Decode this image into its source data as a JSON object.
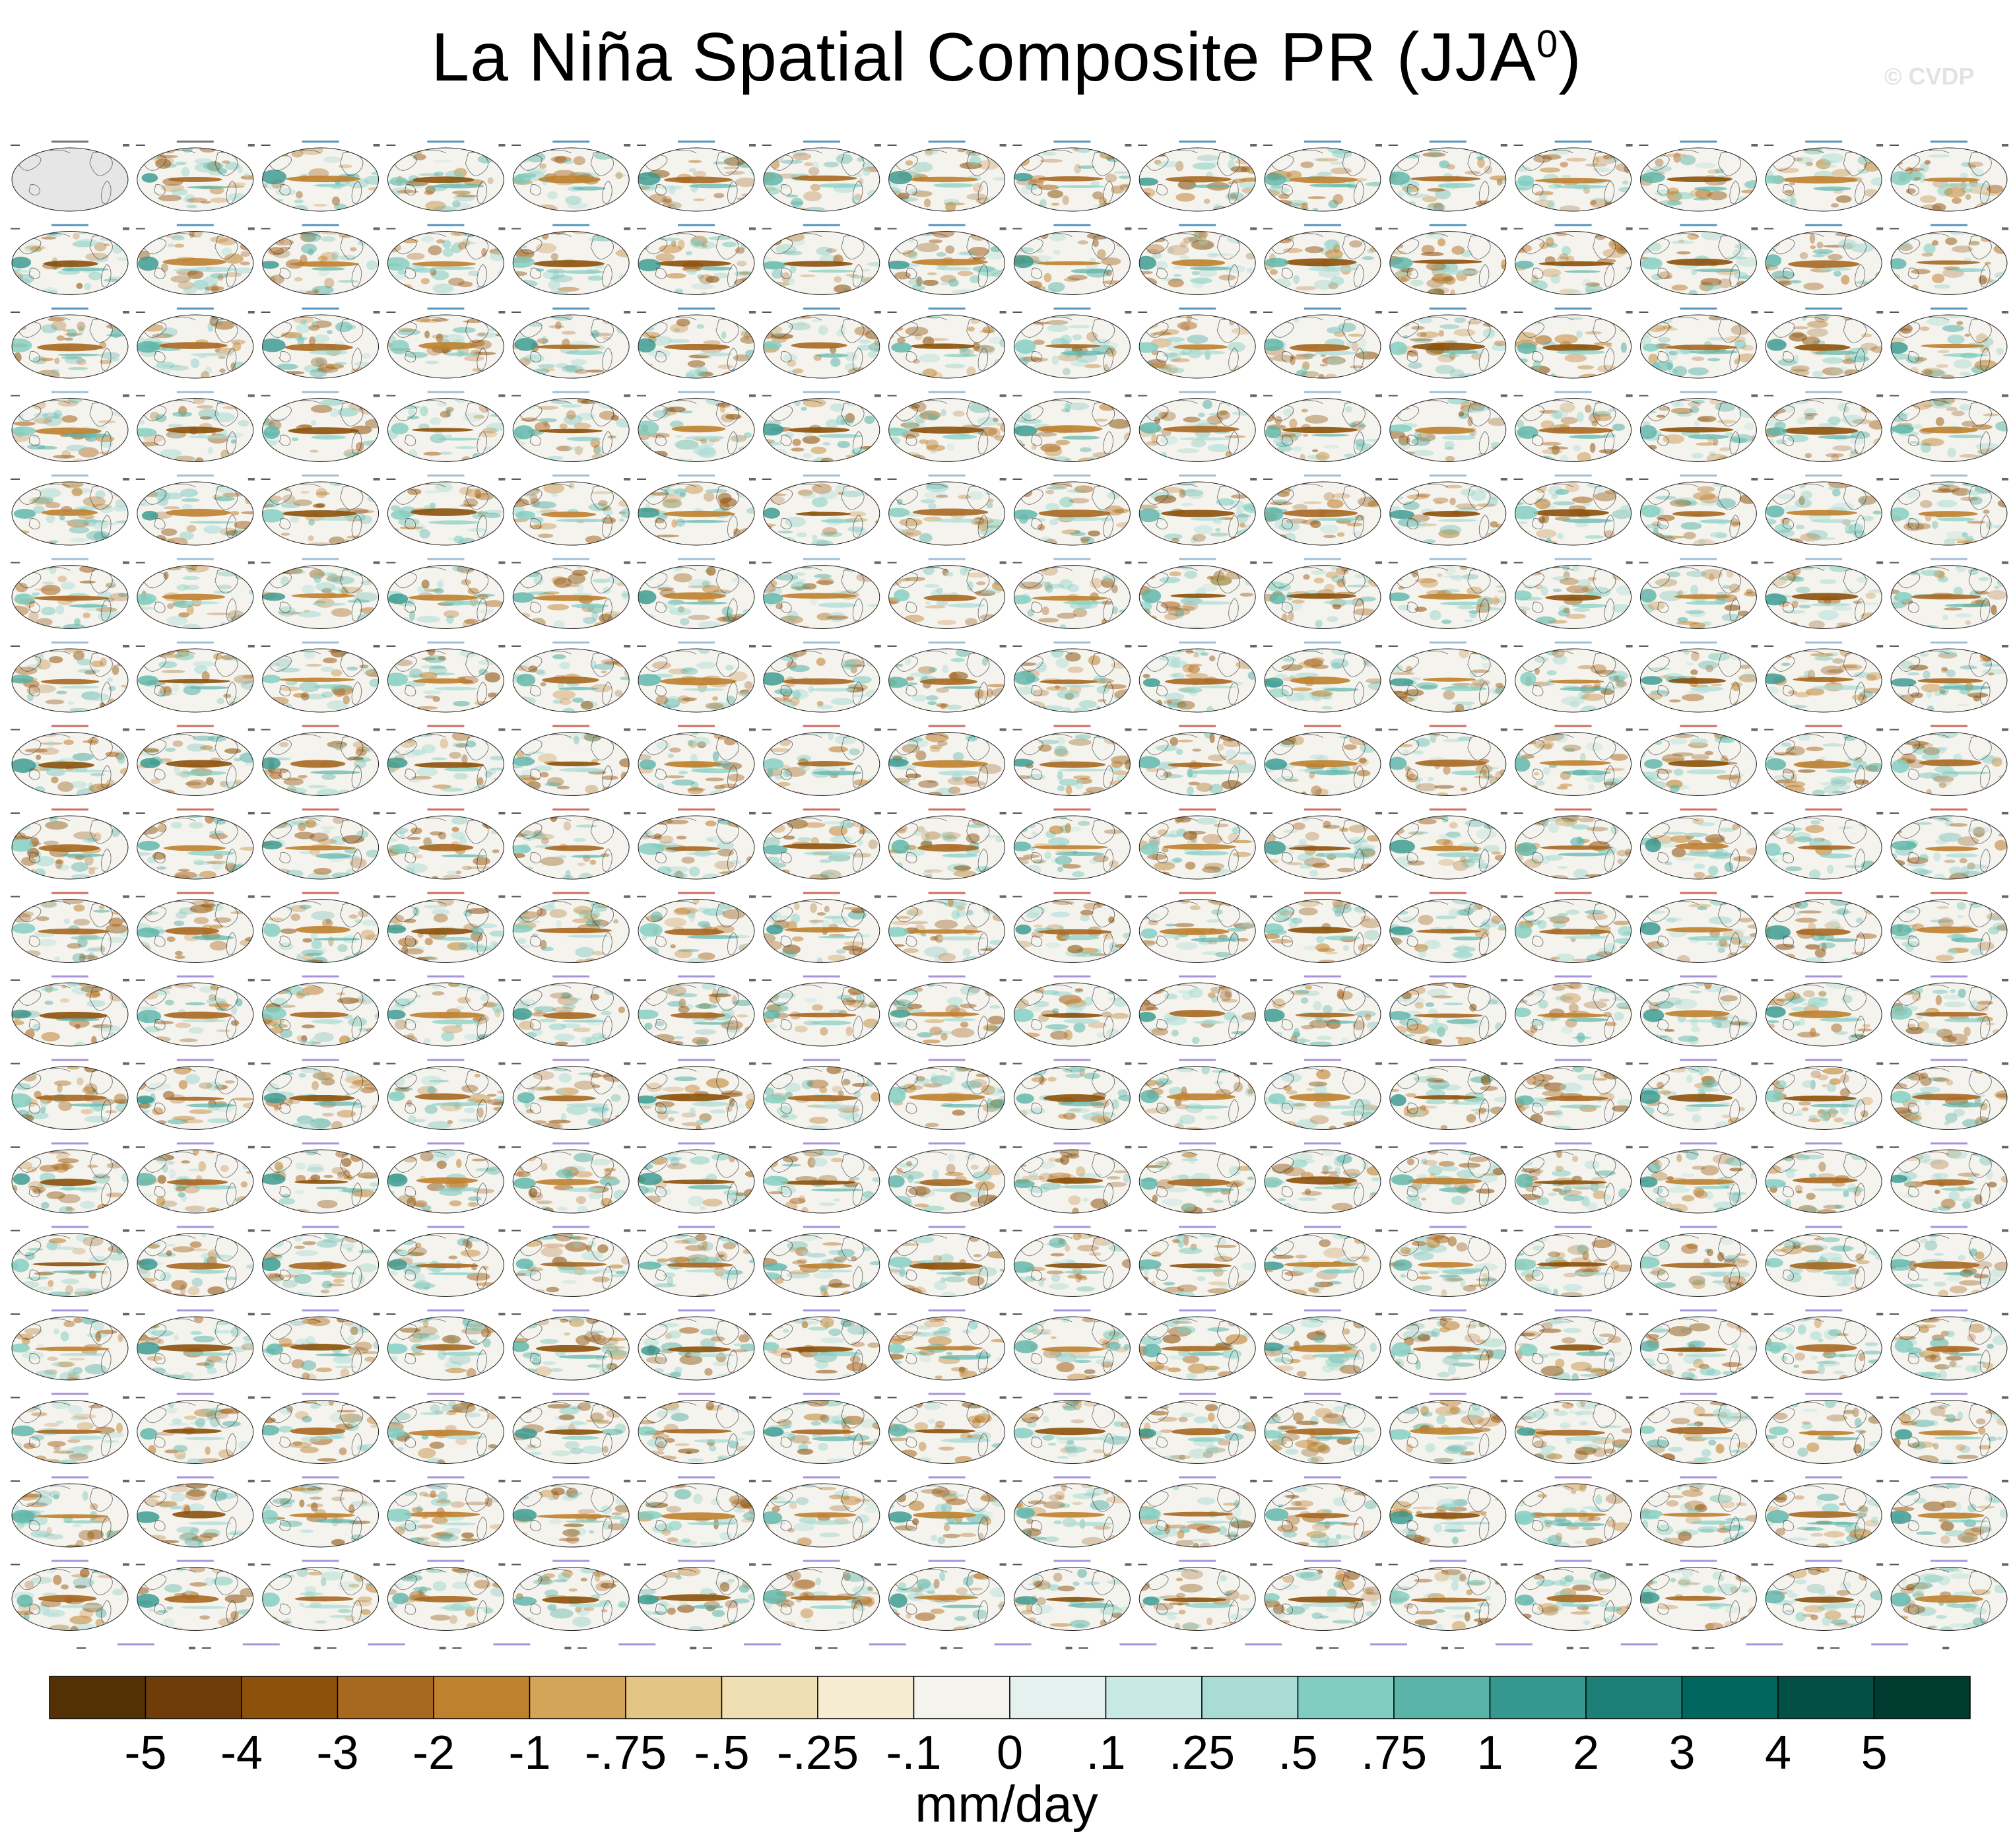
{
  "header": {
    "title_main": "La Niña Spatial Composite PR (JJA",
    "title_sup": "0",
    "title_end": ")",
    "watermark": "© CVDP"
  },
  "chart_data": {
    "type": "map-panel-grid",
    "variable": "PR",
    "season": "JJA0",
    "rows": 19,
    "columns": 16,
    "panels_in_last_row": 15,
    "observation_panels": [
      "GPCC",
      "GPCP"
    ],
    "model_groups": [
      {
        "name": "ACCESS-ESM1-5",
        "title_color": "#1a6fa8"
      },
      {
        "name": "CanESM5",
        "title_color": "#7fa8c9"
      },
      {
        "name": "CESM1",
        "title_color": "#c0392b"
      },
      {
        "name": "CESM2",
        "title_color": "#8a6fd1"
      }
    ],
    "colorbar": {
      "labels": [
        "-5",
        "-4",
        "-3",
        "-2",
        "-1",
        "-.75",
        "-.5",
        "-.25",
        "-.1",
        "0",
        ".1",
        ".25",
        ".5",
        ".75",
        "1",
        "2",
        "3",
        "4",
        "5"
      ],
      "colors": [
        "#543005",
        "#6f3d0a",
        "#8c510a",
        "#a96820",
        "#bf812d",
        "#d4a458",
        "#e3c586",
        "#f0dfb2",
        "#f5ecd2",
        "#f5f3ee",
        "#e4f1ee",
        "#c7eae5",
        "#a8dcd4",
        "#80cdc1",
        "#5ab4a8",
        "#35978f",
        "#1d7f77",
        "#01665e",
        "#024f46",
        "#003c30"
      ],
      "units": "mm/day"
    }
  }
}
